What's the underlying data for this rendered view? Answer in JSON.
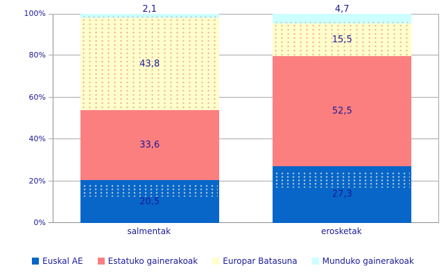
{
  "chart_data": {
    "type": "bar",
    "stacked": true,
    "title": "",
    "categories": [
      "salmentak",
      "erosketak"
    ],
    "series": [
      {
        "name": "Euskal AE",
        "color": "#0866c8",
        "values": [
          20.5,
          27.3
        ],
        "display_labels": [
          "20,5",
          "27,3"
        ]
      },
      {
        "name": "Estatuko gainerakoak",
        "color": "#fc7f80",
        "values": [
          33.6,
          52.5
        ],
        "display_labels": [
          "33,6",
          "52,5"
        ]
      },
      {
        "name": "Europar Batasuna",
        "color": "#ffffcc",
        "values": [
          43.8,
          15.5
        ],
        "display_labels": [
          "43,8",
          "15,5"
        ]
      },
      {
        "name": "Munduko gainerakoak",
        "color": "#ccffff",
        "values": [
          2.1,
          4.7
        ],
        "display_labels": [
          "2,1",
          "4,7"
        ]
      }
    ],
    "y_axis": {
      "tick_labels": [
        "0%",
        "20%",
        "40%",
        "60%",
        "80%",
        "100%"
      ],
      "tick_values": [
        0,
        20,
        40,
        60,
        80,
        100
      ],
      "min": 0,
      "max": 100,
      "grid": true
    },
    "xlabel": "",
    "ylabel": "",
    "legend_position": "bottom",
    "value_unit": "%"
  },
  "colors": {
    "text": "#1a1a99",
    "grid": "#a6a6a6",
    "axis": "#8c8c8c",
    "background": "#ffffff"
  }
}
